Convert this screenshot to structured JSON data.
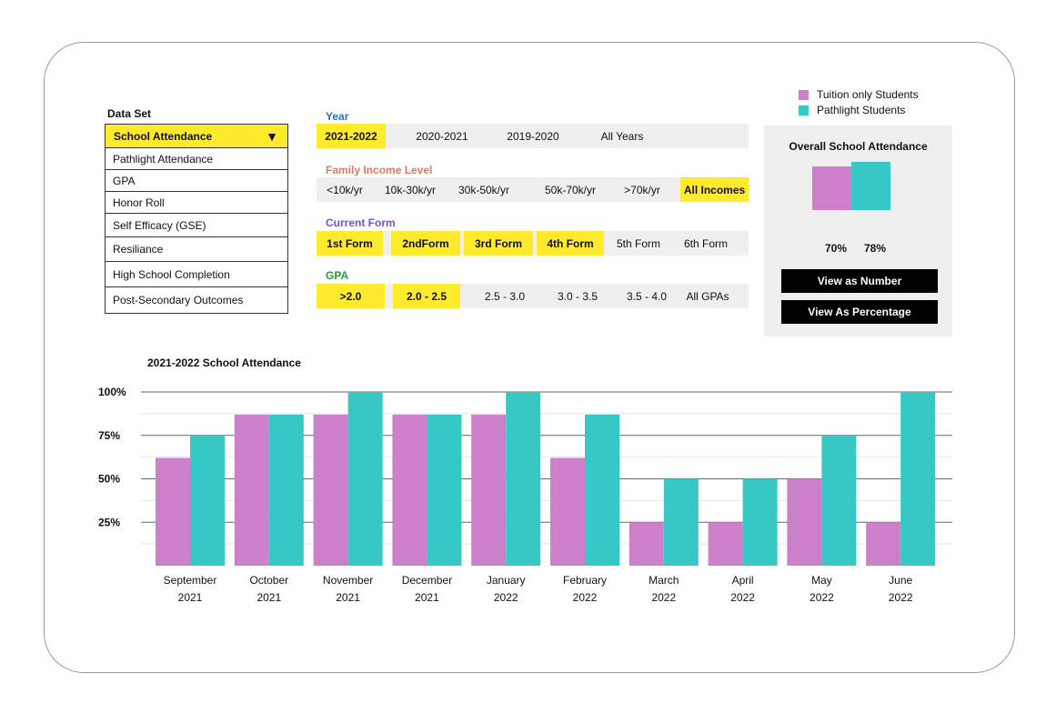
{
  "data_set": {
    "title": "Data Set",
    "selected": "School Attendance",
    "items": [
      "Pathlight Attendance",
      "GPA",
      "Honor Roll",
      "Self Efficacy (GSE)",
      "Resiliance",
      "High School Completion",
      "Post-Secondary Outcomes"
    ]
  },
  "filters": {
    "year": {
      "label": "Year",
      "options": [
        "2021-2022",
        "2020-2021",
        "2019-2020",
        "All Years"
      ],
      "selected": 0
    },
    "income": {
      "label": "Family Income Level",
      "options": [
        "<10k/yr",
        "10k-30k/yr",
        "30k-50k/yr",
        "50k-70k/yr",
        ">70k/yr",
        "All Incomes"
      ],
      "selected": 5
    },
    "form": {
      "label": "Current Form",
      "options": [
        "1st Form",
        "2ndForm",
        "3rd Form",
        "4th Form",
        "5th Form",
        "6th Form"
      ],
      "selected": [
        0,
        1,
        2,
        3
      ]
    },
    "gpa": {
      "label": "GPA",
      "options": [
        ">2.0",
        "2.0 - 2.5",
        "2.5 - 3.0",
        "3.0 - 3.5",
        "3.5 - 4.0",
        "All GPAs"
      ],
      "selected": [
        0,
        1
      ]
    }
  },
  "colors": {
    "tuition": "#cc80c9",
    "pathlight": "#36c8c4",
    "highlight": "#ffea2e",
    "year_label": "#2f6fc0",
    "income_label": "#e07a5f",
    "form_label": "#7a4fd6",
    "gpa_label": "#2aa02a"
  },
  "legend": {
    "items": [
      "Tuition only Students",
      "Pathlight Students"
    ]
  },
  "overall": {
    "title": "Overall School Attendance",
    "tuition_pct": 70,
    "pathlight_pct": 78,
    "tuition_label": "70%",
    "pathlight_label": "78%",
    "btn_number": "View as Number",
    "btn_percentage": "View As Percentage"
  },
  "chart_data": {
    "type": "bar",
    "title": "2021-2022 School Attendance",
    "categories": [
      [
        "September",
        "2021"
      ],
      [
        "October",
        "2021"
      ],
      [
        "November",
        "2021"
      ],
      [
        "December",
        "2021"
      ],
      [
        "January",
        "2022"
      ],
      [
        "February",
        "2022"
      ],
      [
        "March",
        "2022"
      ],
      [
        "April",
        "2022"
      ],
      [
        "May",
        "2022"
      ],
      [
        "June",
        "2022"
      ]
    ],
    "series": [
      {
        "name": "Tuition only Students",
        "values": [
          62,
          87,
          87,
          87,
          87,
          62,
          25,
          25,
          50,
          25
        ]
      },
      {
        "name": "Pathlight Students",
        "values": [
          75,
          87,
          100,
          87,
          100,
          87,
          50,
          50,
          75,
          100
        ]
      }
    ],
    "yticks": [
      "25%",
      "50%",
      "75%",
      "100%"
    ],
    "ylim": [
      0,
      100
    ],
    "grid": true
  }
}
